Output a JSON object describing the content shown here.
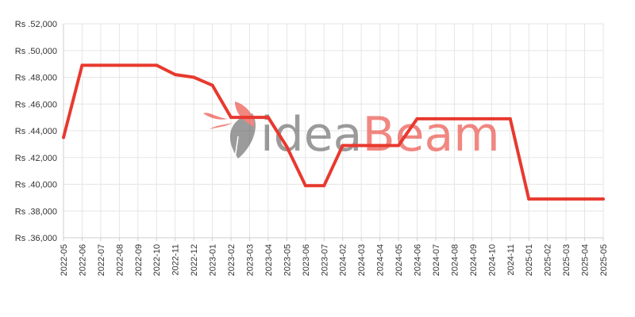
{
  "chart_data": {
    "type": "line",
    "title": "",
    "xlabel": "",
    "ylabel": "",
    "x": [
      "2022-05",
      "2022-06",
      "2022-07",
      "2022-08",
      "2022-09",
      "2022-10",
      "2022-11",
      "2022-12",
      "2023-01",
      "2023-02",
      "2023-03",
      "2023-04",
      "2023-05",
      "2023-06",
      "2023-07",
      "2024-02",
      "2024-03",
      "2024-04",
      "2024-05",
      "2024-06",
      "2024-07",
      "2024-08",
      "2024-09",
      "2024-10",
      "2024-11",
      "2025-01",
      "2025-02",
      "2025-03",
      "2025-04",
      "2025-05"
    ],
    "series": [
      {
        "values": [
          43500,
          48900,
          48900,
          48900,
          48900,
          48900,
          48200,
          48000,
          47400,
          45000,
          45000,
          45000,
          42800,
          39900,
          39900,
          42900,
          42900,
          42900,
          42900,
          44900,
          44900,
          44900,
          44900,
          44900,
          44900,
          38900,
          38900,
          38900,
          38900,
          38900
        ]
      }
    ],
    "ylim": [
      36000,
      52000
    ],
    "y_ticks": [
      "Rs .36,000",
      "Rs .38,000",
      "Rs .40,000",
      "Rs .42,000",
      "Rs .44,000",
      "Rs .46,000",
      "Rs .48,000",
      "Rs .50,000",
      "Rs .52,000"
    ],
    "grid": true,
    "legend": "none",
    "colors": {
      "line": "#e8392f",
      "grid": "#e5e5e5",
      "axis": "#cccccc",
      "text": "#333333"
    }
  },
  "watermark": {
    "part1": "idea",
    "part2": "Beam",
    "color1": "#5a5a5a",
    "color2": "#e8392f"
  }
}
